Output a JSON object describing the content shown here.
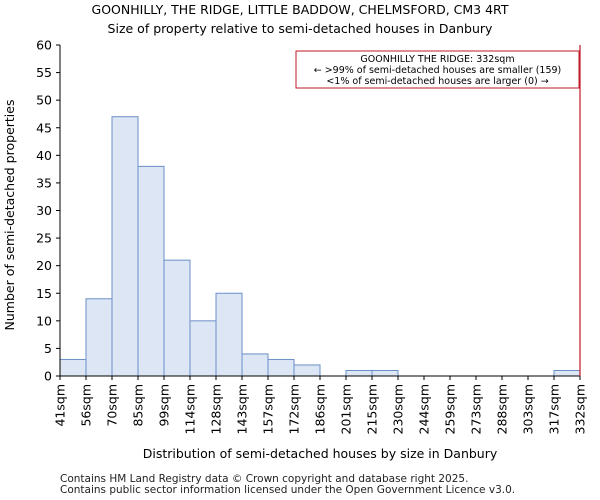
{
  "chart_data": {
    "type": "bar",
    "title": "GOONHILLY, THE RIDGE, LITTLE BADDOW, CHELMSFORD, CM3 4RT",
    "subtitle": "Size of property relative to semi-detached houses in Danbury",
    "xlabel": "Distribution of semi-detached houses by size in Danbury",
    "ylabel": "Number of semi-detached properties",
    "bin_edges": [
      "41sqm",
      "56sqm",
      "70sqm",
      "85sqm",
      "99sqm",
      "114sqm",
      "128sqm",
      "143sqm",
      "157sqm",
      "172sqm",
      "186sqm",
      "201sqm",
      "215sqm",
      "230sqm",
      "244sqm",
      "259sqm",
      "273sqm",
      "288sqm",
      "303sqm",
      "317sqm",
      "332sqm"
    ],
    "values": [
      3,
      14,
      47,
      38,
      21,
      10,
      15,
      4,
      3,
      2,
      0,
      1,
      1,
      0,
      0,
      0,
      0,
      0,
      0,
      1
    ],
    "ylim": [
      0,
      60
    ],
    "yticks": [
      0,
      5,
      10,
      15,
      20,
      25,
      30,
      35,
      40,
      45,
      50,
      55,
      60
    ],
    "bar_fill": "#dce6f5",
    "bar_stroke": "#6b8fc7",
    "marker": {
      "value_label": "332sqm",
      "color": "#c0182a",
      "annotation": [
        "GOONHILLY THE RIDGE: 332sqm",
        "← >99% of semi-detached houses are smaller (159)",
        "<1% of semi-detached houses are larger (0) →"
      ]
    }
  },
  "footer": {
    "line1": "Contains HM Land Registry data © Crown copyright and database right 2025.",
    "line2": "Contains public sector information licensed under the Open Government Licence v3.0."
  }
}
